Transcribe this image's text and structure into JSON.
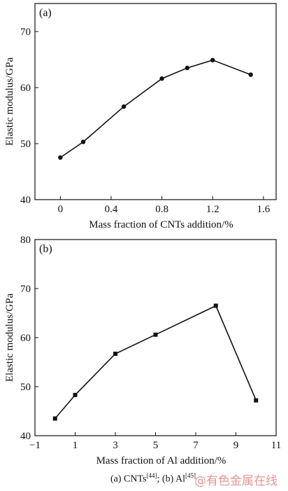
{
  "chart_data": [
    {
      "type": "line",
      "panel_label": "(a)",
      "xlabel": "Mass fraction of CNTs addition/%",
      "ylabel": "Elastic modulus/GPa",
      "xlim": [
        -0.2,
        1.7
      ],
      "ylim": [
        40,
        75
      ],
      "xticks": [
        0,
        0.4,
        0.8,
        1.2,
        1.6
      ],
      "xtick_labels": [
        "0",
        "0.4",
        "0.8",
        "1.2",
        "1.6"
      ],
      "yticks": [
        40,
        50,
        60,
        70
      ],
      "ytick_labels": [
        "40",
        "50",
        "60",
        "70"
      ],
      "marker": "circle",
      "grid": false,
      "series": [
        {
          "x": [
            0,
            0.18,
            0.5,
            0.8,
            1.0,
            1.2,
            1.5
          ],
          "y": [
            47.5,
            50.3,
            56.6,
            61.6,
            63.5,
            64.9,
            62.3
          ]
        }
      ]
    },
    {
      "type": "line",
      "panel_label": "(b)",
      "xlabel": "Mass fraction of Al addition/%",
      "ylabel": "Elastic modulus/GPa",
      "xlim": [
        -1,
        11
      ],
      "ylim": [
        40,
        80
      ],
      "xticks": [
        -1,
        1,
        3,
        5,
        7,
        9,
        11
      ],
      "xtick_labels": [
        "−1",
        "1",
        "3",
        "5",
        "7",
        "9",
        "11"
      ],
      "yticks": [
        40,
        50,
        60,
        70,
        80
      ],
      "ytick_labels": [
        "40",
        "50",
        "60",
        "70",
        "80"
      ],
      "marker": "square",
      "grid": false,
      "series": [
        {
          "x": [
            0,
            1,
            3,
            5,
            8,
            10
          ],
          "y": [
            43.5,
            48.3,
            56.7,
            60.6,
            66.5,
            47.2
          ]
        }
      ]
    }
  ],
  "caption": {
    "part_a": "(a)  CNTs",
    "ref_a": "[44]",
    "sep": ";  (b) Al",
    "ref_b": "[45]"
  },
  "watermark": "@有色金属在线"
}
